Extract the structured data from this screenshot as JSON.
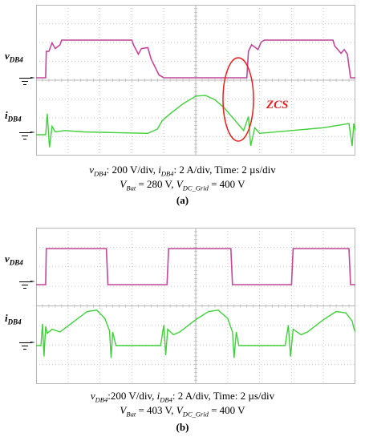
{
  "colors": {
    "voltage_trace": "#c2479a",
    "current_trace": "#3fd03a",
    "grid": "#b8b8b8",
    "annotation": "#e52020"
  },
  "chart_data": [
    {
      "type": "line",
      "panel_label": "(a)",
      "channel_labels": {
        "voltage": "v",
        "voltage_sub": "DB4",
        "current": "i",
        "current_sub": "DB4"
      },
      "caption_line1": {
        "v_sym": "v",
        "v_sub": "DB4",
        "v_scale": ": 200 V/div, ",
        "i_sym": "i",
        "i_sub": "DB4",
        "i_scale": ": 2 A/div, Time: 2 µs/div"
      },
      "caption_line2": {
        "vbat_sym": "V",
        "vbat_sub": "Bat",
        "vbat_val": " = 280 V, ",
        "vdc_sym": "V",
        "vdc_sub": "DC_Grid",
        "vdc_val": " = 400 V"
      },
      "annotation": "ZCS",
      "grid": true,
      "divisions": {
        "x": 10,
        "y": 8
      },
      "time_per_div_us": 2,
      "volt_per_div": 200,
      "amp_per_div": 2,
      "voltage_wave": [
        [
          0.0,
          0
        ],
        [
          0.3,
          0
        ],
        [
          0.32,
          280
        ],
        [
          0.4,
          280
        ],
        [
          0.5,
          370
        ],
        [
          0.6,
          310
        ],
        [
          0.75,
          350
        ],
        [
          0.8,
          400
        ],
        [
          3.0,
          400
        ],
        [
          3.05,
          350
        ],
        [
          3.2,
          250
        ],
        [
          3.3,
          310
        ],
        [
          3.5,
          320
        ],
        [
          3.6,
          200
        ],
        [
          3.85,
          30
        ],
        [
          4.0,
          0
        ],
        [
          6.6,
          0
        ],
        [
          6.65,
          280
        ],
        [
          6.75,
          350
        ],
        [
          6.95,
          300
        ],
        [
          7.05,
          380
        ],
        [
          7.15,
          400
        ],
        [
          9.3,
          400
        ],
        [
          9.35,
          340
        ],
        [
          9.55,
          260
        ],
        [
          9.65,
          300
        ],
        [
          9.75,
          250
        ],
        [
          9.85,
          0
        ],
        [
          10.0,
          0
        ]
      ],
      "current_wave": [
        [
          0.0,
          0
        ],
        [
          0.3,
          0
        ],
        [
          0.35,
          1.5
        ],
        [
          0.42,
          -0.9
        ],
        [
          0.5,
          0.6
        ],
        [
          0.6,
          0.2
        ],
        [
          0.9,
          0.3
        ],
        [
          1.5,
          0.2
        ],
        [
          2.5,
          0.15
        ],
        [
          3.5,
          0.1
        ],
        [
          3.8,
          0.4
        ],
        [
          3.95,
          1.0
        ],
        [
          4.2,
          1.5
        ],
        [
          4.6,
          2.2
        ],
        [
          5.0,
          2.75
        ],
        [
          5.3,
          2.8
        ],
        [
          5.6,
          2.5
        ],
        [
          5.9,
          1.9
        ],
        [
          6.2,
          1.1
        ],
        [
          6.5,
          0.3
        ],
        [
          6.65,
          1.3
        ],
        [
          6.72,
          -0.8
        ],
        [
          6.85,
          0.5
        ],
        [
          7.0,
          0.1
        ],
        [
          8.0,
          0.3
        ],
        [
          9.0,
          0.5
        ],
        [
          9.8,
          0.8
        ],
        [
          9.9,
          -0.8
        ],
        [
          9.95,
          0.8
        ],
        [
          10.0,
          0.3
        ]
      ]
    },
    {
      "type": "line",
      "panel_label": "(b)",
      "channel_labels": {
        "voltage": "v",
        "voltage_sub": "DB4",
        "current": "i",
        "current_sub": "DB4"
      },
      "caption_line1": {
        "v_sym": "v",
        "v_sub": "DB4",
        "v_scale": ":200 V/div, ",
        "i_sym": "i",
        "i_sub": "DB4",
        "i_scale": ": 2 A/div, Time: 2 µs/div"
      },
      "caption_line2": {
        "vbat_sym": "V",
        "vbat_sub": "Bat",
        "vbat_val": " = 403 V, ",
        "vdc_sym": "V",
        "vdc_sub": "DC_Grid",
        "vdc_val": " = 400 V"
      },
      "grid": true,
      "divisions": {
        "x": 10,
        "y": 8
      },
      "time_per_div_us": 2,
      "volt_per_div": 200,
      "amp_per_div": 2,
      "voltage_wave": [
        [
          0.0,
          0
        ],
        [
          0.3,
          0
        ],
        [
          0.32,
          400
        ],
        [
          2.2,
          400
        ],
        [
          2.25,
          0
        ],
        [
          4.1,
          0
        ],
        [
          4.15,
          400
        ],
        [
          6.1,
          400
        ],
        [
          6.15,
          0
        ],
        [
          8.0,
          0
        ],
        [
          8.05,
          400
        ],
        [
          9.8,
          400
        ],
        [
          9.85,
          0
        ],
        [
          10.0,
          0
        ]
      ],
      "current_wave": [
        [
          0.0,
          0
        ],
        [
          0.15,
          0
        ],
        [
          0.2,
          1.6
        ],
        [
          0.25,
          -0.8
        ],
        [
          0.3,
          1.4
        ],
        [
          0.35,
          0.9
        ],
        [
          0.5,
          1.2
        ],
        [
          0.75,
          1.0
        ],
        [
          1.2,
          1.8
        ],
        [
          1.6,
          2.5
        ],
        [
          1.9,
          2.6
        ],
        [
          2.15,
          2.0
        ],
        [
          2.3,
          1.1
        ],
        [
          2.35,
          -0.9
        ],
        [
          2.4,
          1.0
        ],
        [
          2.5,
          0
        ],
        [
          3.9,
          0
        ],
        [
          4.0,
          1.5
        ],
        [
          4.06,
          -0.7
        ],
        [
          4.12,
          1.2
        ],
        [
          4.3,
          0.8
        ],
        [
          4.5,
          1.0
        ],
        [
          5.0,
          1.9
        ],
        [
          5.4,
          2.5
        ],
        [
          5.7,
          2.6
        ],
        [
          6.0,
          2.0
        ],
        [
          6.15,
          1.0
        ],
        [
          6.2,
          -0.9
        ],
        [
          6.27,
          1.0
        ],
        [
          6.35,
          0
        ],
        [
          7.8,
          0
        ],
        [
          7.9,
          1.5
        ],
        [
          7.97,
          -0.8
        ],
        [
          8.05,
          1.2
        ],
        [
          8.3,
          0.8
        ],
        [
          8.5,
          1.0
        ],
        [
          9.0,
          1.9
        ],
        [
          9.4,
          2.5
        ],
        [
          9.7,
          2.4
        ],
        [
          9.9,
          1.8
        ],
        [
          9.95,
          1.3
        ],
        [
          10.0,
          1.0
        ]
      ]
    }
  ]
}
